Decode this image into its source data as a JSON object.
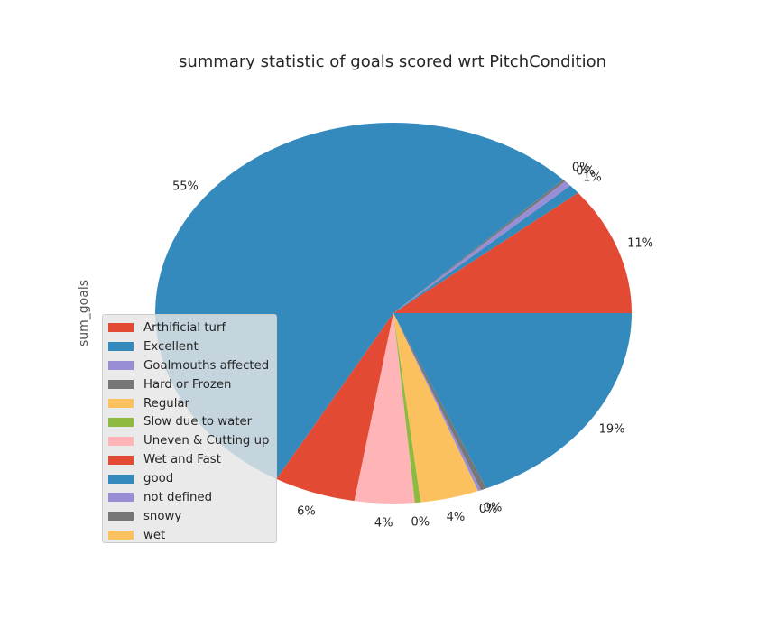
{
  "chart_data": {
    "type": "pie",
    "title": "summary statistic of goals scored wrt PitchCondition",
    "ylabel": "sum_goals",
    "legend_position": "lower-left",
    "slices": [
      {
        "label": "Arthificial turf",
        "pct": 11,
        "pct_label": "11%",
        "color": "#E24A33"
      },
      {
        "label": "Excellent",
        "pct": 0.8,
        "pct_label": "1%",
        "color": "#348ABD"
      },
      {
        "label": "Goalmouths affected",
        "pct": 0.5,
        "pct_label": "0%",
        "color": "#988ED5"
      },
      {
        "label": "Hard or Frozen",
        "pct": 0.2,
        "pct_label": "0%",
        "color": "#777777"
      },
      {
        "label": "Regular",
        "pct": 0,
        "pct_label": "",
        "color": "#FBC15E"
      },
      {
        "label": "Slow due to water",
        "pct": 0,
        "pct_label": "",
        "color": "#8EBA42"
      },
      {
        "label": "Uneven & Cutting up",
        "pct": 0,
        "pct_label": "",
        "color": "#FFB5B8"
      },
      {
        "label": "Wet and Fast",
        "pct": 0,
        "pct_label": "",
        "color": "#E24A33"
      },
      {
        "label": "good",
        "pct": 55,
        "pct_label": "55%",
        "color": "#348ABD"
      },
      {
        "label": "Wet and Fast",
        "pct": 5.6,
        "pct_label": "6%",
        "color": "#E24A33"
      },
      {
        "label": "Uneven & Cutting up",
        "pct": 4.1,
        "pct_label": "4%",
        "color": "#FFB5B8"
      },
      {
        "label": "Slow due to water",
        "pct": 0.4,
        "pct_label": "0%",
        "color": "#8EBA42"
      },
      {
        "label": "Regular",
        "pct": 4.0,
        "pct_label": "4%",
        "color": "#FBC15E"
      },
      {
        "label": "not defined",
        "pct": 0.2,
        "pct_label": "0%",
        "color": "#988ED5"
      },
      {
        "label": "snowy",
        "pct": 0.4,
        "pct_label": "0%",
        "color": "#777777"
      },
      {
        "label": "wet",
        "pct": 0,
        "pct_label": "",
        "color": "#FBC15E"
      },
      {
        "label": "Excellent",
        "pct": 18.8,
        "pct_label": "19%",
        "color": "#348ABD"
      }
    ],
    "legend": [
      {
        "label": "Arthificial turf",
        "color": "#E24A33"
      },
      {
        "label": "Excellent",
        "color": "#348ABD"
      },
      {
        "label": "Goalmouths affected",
        "color": "#988ED5"
      },
      {
        "label": "Hard or Frozen",
        "color": "#777777"
      },
      {
        "label": "Regular",
        "color": "#FBC15E"
      },
      {
        "label": "Slow due to water",
        "color": "#8EBA42"
      },
      {
        "label": "Uneven & Cutting up",
        "color": "#FFB5B8"
      },
      {
        "label": "Wet and Fast",
        "color": "#E24A33"
      },
      {
        "label": "good",
        "color": "#348ABD"
      },
      {
        "label": "not defined",
        "color": "#988ED5"
      },
      {
        "label": "snowy",
        "color": "#777777"
      },
      {
        "label": "wet",
        "color": "#FBC15E"
      }
    ]
  }
}
